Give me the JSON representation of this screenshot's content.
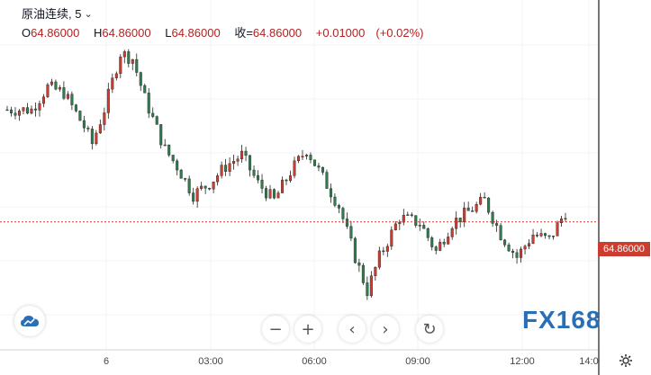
{
  "legend": {
    "title": "原油连续, 5",
    "open_key": "O",
    "open": "64.86000",
    "high_key": "H",
    "high": "64.86000",
    "low_key": "L",
    "low": "64.86000",
    "close_key": "收=",
    "close": "64.86000",
    "change": "+0.01000",
    "change_pct": "(+0.02%)"
  },
  "price_label": "64.86000",
  "colors": {
    "up": "#cc3d2f",
    "down": "#2e7d4f",
    "price_line": "#cc3d2f",
    "grid": "#f0f3fa",
    "watermark": "#2a6fb5"
  },
  "controls": [
    "minus-icon",
    "plus-icon",
    "chevron-left-icon",
    "chevron-right-icon",
    "reset-icon"
  ],
  "watermark": "FX168",
  "chart_data": {
    "type": "candlestick",
    "instrument": "原油连续",
    "interval": "5",
    "x_ticks": [
      "6",
      "03:00",
      "06:00",
      "09:00",
      "12:00",
      "14:0"
    ],
    "current_price": 64.86,
    "price_line_y": 64.86,
    "grid": true,
    "close_path": [
      {
        "t": 0,
        "y": 65.85
      },
      {
        "t": 6,
        "y": 65.85
      },
      {
        "t": 10,
        "y": 66.05
      },
      {
        "t": 14,
        "y": 66.0
      },
      {
        "t": 19,
        "y": 65.7
      },
      {
        "t": 21,
        "y": 65.55
      },
      {
        "t": 24,
        "y": 65.85
      },
      {
        "t": 28,
        "y": 66.35
      },
      {
        "t": 31,
        "y": 66.3
      },
      {
        "t": 34,
        "y": 65.95
      },
      {
        "t": 39,
        "y": 65.5
      },
      {
        "t": 42,
        "y": 65.35
      },
      {
        "t": 46,
        "y": 65.1
      },
      {
        "t": 50,
        "y": 65.2
      },
      {
        "t": 54,
        "y": 65.35
      },
      {
        "t": 58,
        "y": 65.45
      },
      {
        "t": 62,
        "y": 65.2
      },
      {
        "t": 66,
        "y": 65.05
      },
      {
        "t": 70,
        "y": 65.3
      },
      {
        "t": 74,
        "y": 65.5
      },
      {
        "t": 78,
        "y": 65.25
      },
      {
        "t": 82,
        "y": 65.0
      },
      {
        "t": 86,
        "y": 64.55
      },
      {
        "t": 89,
        "y": 64.25
      },
      {
        "t": 92,
        "y": 64.55
      },
      {
        "t": 97,
        "y": 64.9
      },
      {
        "t": 102,
        "y": 64.85
      },
      {
        "t": 106,
        "y": 64.6
      },
      {
        "t": 110,
        "y": 64.85
      },
      {
        "t": 114,
        "y": 64.95
      },
      {
        "t": 118,
        "y": 65.05
      },
      {
        "t": 122,
        "y": 64.75
      },
      {
        "t": 126,
        "y": 64.55
      },
      {
        "t": 130,
        "y": 64.75
      },
      {
        "t": 134,
        "y": 64.7
      },
      {
        "t": 138,
        "y": 64.95
      }
    ],
    "y_range_visible": [
      64.2,
      66.5
    ]
  }
}
